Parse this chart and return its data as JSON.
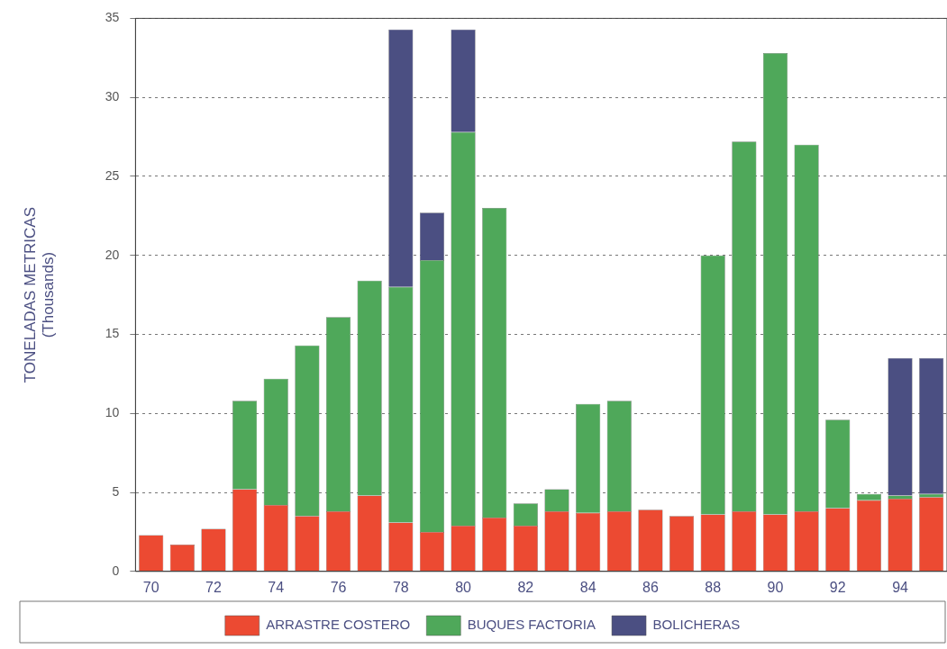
{
  "chart_data": {
    "type": "bar",
    "stacked": true,
    "ylabel": "TONELADAS METRICAS\n(Thousands)",
    "categories": [
      "70",
      null,
      "72",
      null,
      "74",
      null,
      "76",
      null,
      "78",
      null,
      "80",
      null,
      "82",
      null,
      "84",
      null,
      "86",
      null,
      "88",
      null,
      "90",
      null,
      "92",
      null,
      "94",
      null
    ],
    "series": [
      {
        "name": "ARRASTRE COSTERO",
        "color": "#ec4a32",
        "values": [
          2.3,
          1.7,
          2.7,
          5.2,
          4.2,
          3.5,
          3.8,
          4.8,
          3.1,
          2.5,
          2.9,
          3.4,
          2.9,
          3.8,
          3.7,
          3.8,
          3.9,
          3.5,
          3.6,
          3.8,
          3.6,
          3.8,
          4.0,
          4.5,
          4.6,
          4.7
        ]
      },
      {
        "name": "BUQUES FACTORIA",
        "color": "#4fa85a",
        "values": [
          0,
          0,
          0,
          5.6,
          8.0,
          10.8,
          12.3,
          13.6,
          14.9,
          17.2,
          24.9,
          19.6,
          1.4,
          1.4,
          6.9,
          7.0,
          0,
          0,
          16.4,
          23.4,
          29.2,
          23.2,
          5.6,
          0.4,
          0.2,
          0.2
        ]
      },
      {
        "name": "BOLICHERAS",
        "color": "#4b4f82",
        "values": [
          0,
          0,
          0,
          0,
          0,
          0,
          0,
          0,
          16.3,
          3.0,
          6.5,
          0,
          0,
          0,
          0,
          0,
          0,
          0,
          0,
          0,
          0,
          0,
          0,
          0,
          8.7,
          8.6
        ]
      }
    ],
    "ylim": [
      0,
      35
    ],
    "yticks": [
      0,
      5,
      10,
      15,
      20,
      25,
      30,
      35
    ],
    "grid": "y",
    "legend": "bottom"
  }
}
